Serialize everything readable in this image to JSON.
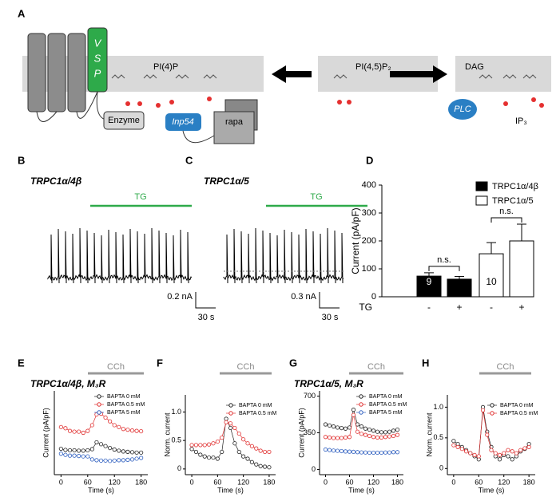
{
  "panel_labels": [
    "A",
    "B",
    "C",
    "D",
    "E",
    "F",
    "G",
    "H"
  ],
  "diagram": {
    "vsp_letters": [
      "V",
      "S",
      "P"
    ],
    "membrane_labels": [
      "PI(4)P",
      "PI(4,5)P₂",
      "DAG"
    ],
    "enzyme": "Enzyme",
    "inp54": "Inp54",
    "rapa": "rapa",
    "plc": "PLC",
    "ip3": "IP₃"
  },
  "traces": [
    {
      "title": "TRPC1α/4β",
      "stimulus": "TG",
      "scale_y": "0.2 nA",
      "scale_x": "30 s"
    },
    {
      "title": "TRPC1α/5",
      "stimulus": "TG",
      "scale_y": "0.3 nA",
      "scale_x": "30 s"
    }
  ],
  "chart_data": [
    {
      "type": "bar",
      "ylabel": "Current (pA/pF)",
      "xlabel": "TG",
      "categories": [
        "-",
        "+"
      ],
      "ylim": [
        0,
        400
      ],
      "yticks": [
        0,
        100,
        200,
        300,
        400
      ],
      "series": [
        {
          "name": "TRPC1α/4β",
          "color": "#000000",
          "values": [
            74,
            63
          ],
          "errors": [
            12,
            10
          ],
          "n": 9
        },
        {
          "name": "TRPC1α/5",
          "color": "#ffffff",
          "values": [
            154,
            200
          ],
          "errors": [
            40,
            60
          ],
          "n": 10
        }
      ],
      "annotations": [
        "n.s.",
        "n.s."
      ]
    },
    {
      "type": "line",
      "title": "TRPC1α/4β, M₃R",
      "ylabel": "Current (pA/pF)",
      "xlabel": "Time (s)",
      "annotation": "CCh",
      "x": [
        0,
        10,
        20,
        30,
        40,
        50,
        60,
        70,
        80,
        90,
        100,
        110,
        120,
        130,
        140,
        150,
        160,
        170,
        180
      ],
      "xlim": [
        -15,
        195
      ],
      "xticks": [
        0,
        60,
        120,
        180
      ],
      "ylim": [
        -10,
        210
      ],
      "series": [
        {
          "name": "BAPTA 0 mM",
          "color": "#222222",
          "values": [
            58,
            55,
            54,
            54,
            53,
            53,
            54,
            57,
            75,
            70,
            65,
            60,
            56,
            53,
            51,
            50,
            49,
            48,
            48
          ]
        },
        {
          "name": "BAPTA 0.5 mM",
          "color": "#e03030",
          "values": [
            115,
            112,
            105,
            103,
            103,
            100,
            105,
            120,
            148,
            150,
            140,
            130,
            120,
            115,
            110,
            108,
            106,
            105,
            104
          ]
        },
        {
          "name": "BAPTA 5 mM",
          "color": "#3060c0",
          "values": [
            45,
            42,
            40,
            40,
            39,
            38,
            38,
            30,
            28,
            27,
            27,
            26,
            27,
            28,
            28,
            29,
            30,
            32,
            34
          ]
        }
      ]
    },
    {
      "type": "line",
      "ylabel": "Norm. current",
      "xlabel": "Time (s)",
      "annotation": "CCh",
      "x": [
        0,
        10,
        20,
        30,
        40,
        50,
        60,
        70,
        80,
        90,
        100,
        110,
        120,
        130,
        140,
        150,
        160,
        170,
        180
      ],
      "xlim": [
        -15,
        195
      ],
      "xticks": [
        0,
        60,
        120,
        180
      ],
      "ylim": [
        -0.1,
        1.3
      ],
      "yticks": [
        0,
        0.5,
        {
          "value": 1,
          "label": "1.0"
        }
      ],
      "series": [
        {
          "name": "BAPTA 0 mM",
          "color": "#222222",
          "values": [
            0.35,
            0.3,
            0.25,
            0.22,
            0.2,
            0.2,
            0.18,
            0.3,
            0.88,
            0.72,
            0.45,
            0.3,
            0.22,
            0.18,
            0.12,
            0.08,
            0.05,
            0.04,
            0.03
          ]
        },
        {
          "name": "BAPTA 0.5 mM",
          "color": "#e03030",
          "values": [
            0.42,
            0.42,
            0.42,
            0.42,
            0.43,
            0.45,
            0.48,
            0.55,
            0.82,
            0.8,
            0.72,
            0.62,
            0.52,
            0.45,
            0.4,
            0.36,
            0.32,
            0.3,
            0.3
          ]
        }
      ]
    },
    {
      "type": "line",
      "title": "TRPC1α/5, M₃R",
      "ylabel": "Current (pA/pF)",
      "xlabel": "Time (s)",
      "annotation": "CCh",
      "x": [
        0,
        10,
        20,
        30,
        40,
        50,
        60,
        70,
        80,
        90,
        100,
        110,
        120,
        130,
        140,
        150,
        160,
        170,
        180
      ],
      "xlim": [
        -15,
        195
      ],
      "xticks": [
        0,
        60,
        120,
        180
      ],
      "ylim": [
        -50,
        750
      ],
      "yticks": [
        0,
        350,
        700
      ],
      "series": [
        {
          "name": "BAPTA 0 mM",
          "color": "#222222",
          "values": [
            430,
            420,
            410,
            400,
            395,
            390,
            400,
            570,
            430,
            410,
            390,
            380,
            370,
            360,
            355,
            355,
            360,
            370,
            380
          ]
        },
        {
          "name": "BAPTA 0.5 mM",
          "color": "#e03030",
          "values": [
            310,
            305,
            300,
            300,
            300,
            305,
            310,
            520,
            360,
            340,
            330,
            320,
            310,
            305,
            305,
            310,
            315,
            320,
            330
          ]
        },
        {
          "name": "BAPTA 5 mM",
          "color": "#3060c0",
          "values": [
            190,
            185,
            180,
            178,
            175,
            172,
            170,
            168,
            165,
            163,
            162,
            160,
            160,
            160,
            160,
            162,
            162,
            165,
            165
          ]
        }
      ]
    },
    {
      "type": "line",
      "ylabel": "Norm. current",
      "xlabel": "Time (s)",
      "annotation": "CCh",
      "x": [
        0,
        10,
        20,
        30,
        40,
        50,
        60,
        70,
        80,
        90,
        100,
        110,
        120,
        130,
        140,
        150,
        160,
        170,
        180
      ],
      "xlim": [
        -15,
        195
      ],
      "xticks": [
        0,
        60,
        120,
        180
      ],
      "ylim": [
        -0.1,
        1.2
      ],
      "yticks": [
        0,
        0.5,
        {
          "value": 1,
          "label": "1.0"
        }
      ],
      "series": [
        {
          "name": "BAPTA 0 mM",
          "color": "#222222",
          "values": [
            0.45,
            0.4,
            0.35,
            0.3,
            0.25,
            0.2,
            0.15,
            1.0,
            0.6,
            0.35,
            0.2,
            0.15,
            0.22,
            0.2,
            0.15,
            0.2,
            0.28,
            0.32,
            0.4
          ]
        },
        {
          "name": "BAPTA 0.5 mM",
          "color": "#e03030",
          "values": [
            0.38,
            0.35,
            0.32,
            0.28,
            0.25,
            0.22,
            0.2,
            0.95,
            0.55,
            0.3,
            0.25,
            0.22,
            0.25,
            0.3,
            0.28,
            0.25,
            0.3,
            0.33,
            0.35
          ]
        }
      ]
    }
  ]
}
